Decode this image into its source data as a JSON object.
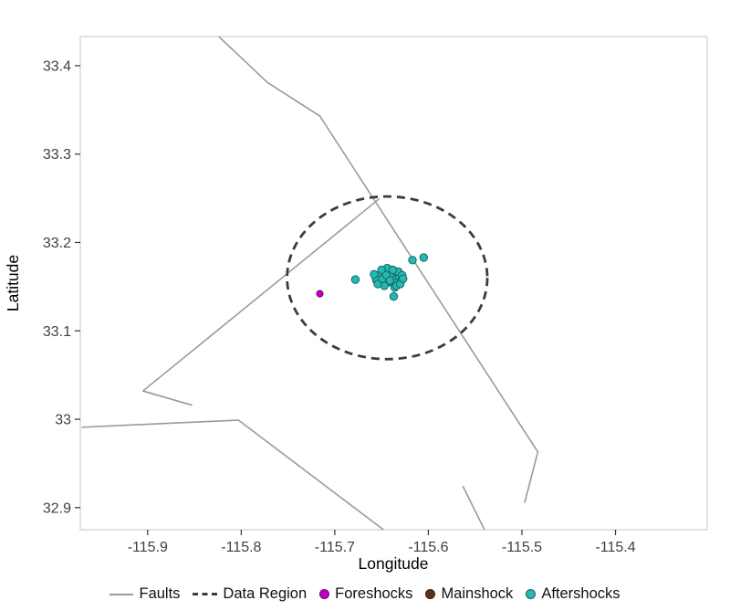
{
  "figure": {
    "xlabel": "Longitude",
    "ylabel": "Latitude"
  },
  "legend": {
    "items": [
      {
        "label": "Faults",
        "type": "line",
        "color": "#9a9a9a",
        "border": "#9a9a9a"
      },
      {
        "label": "Data Region",
        "type": "dashed-line",
        "color": "#3c3c3c",
        "border": "#3c3c3c"
      },
      {
        "label": "Foreshocks",
        "type": "point",
        "color": "#c000c0",
        "border": "#800080"
      },
      {
        "label": "Mainshock",
        "type": "point",
        "color": "#5c3317",
        "border": "#3b2009"
      },
      {
        "label": "Aftershocks",
        "type": "point",
        "color": "#29b7b2",
        "border": "#0d6a66"
      }
    ]
  },
  "chart_data": {
    "type": "scatter",
    "title": "",
    "xlabel": "Longitude",
    "ylabel": "Latitude",
    "xlim": [
      -115.972,
      -115.302
    ],
    "ylim": [
      32.875,
      33.433
    ],
    "grid": false,
    "legend_position": "bottom",
    "x_ticks": {
      "values": [
        -115.9,
        -115.8,
        -115.7,
        -115.6,
        -115.5,
        -115.4
      ],
      "labels": [
        "-115.9",
        "-115.8",
        "-115.7",
        "-115.6",
        "-115.5",
        "-115.4"
      ]
    },
    "y_ticks": {
      "values": [
        33.4,
        33.3,
        33.2,
        33.1,
        33.0,
        32.9
      ],
      "labels": [
        "33.4",
        "33.3",
        "33.2",
        "33.1",
        "33",
        "32.9"
      ]
    },
    "faults": {
      "color": "#9a9a9a",
      "width": 1.6,
      "polylines": [
        [
          [
            -115.827,
            33.436
          ],
          [
            -115.772,
            33.381
          ],
          [
            -115.716,
            33.343
          ]
        ],
        [
          [
            -115.716,
            33.343
          ],
          [
            -115.483,
            32.963
          ],
          [
            -115.497,
            32.906
          ]
        ],
        [
          [
            -115.653,
            33.249
          ],
          [
            -115.905,
            33.032
          ],
          [
            -115.853,
            33.016
          ]
        ],
        [
          [
            -115.97,
            32.991
          ],
          [
            -115.803,
            32.999
          ],
          [
            -115.648,
            32.875
          ]
        ],
        [
          [
            -115.563,
            32.924
          ],
          [
            -115.54,
            32.875
          ]
        ]
      ]
    },
    "data_region": {
      "shape": "ellipse",
      "center": [
        -115.644,
        33.16
      ],
      "rx": 0.107,
      "ry": 0.092,
      "color": "#3c3c3c",
      "dash": [
        9,
        6
      ],
      "width": 2.8
    },
    "series": [
      {
        "name": "Foreshocks",
        "marker": "circle",
        "radius": 3.6,
        "fill": "#c000c0",
        "stroke": "#800080",
        "points": [
          [
            -115.716,
            33.142
          ],
          [
            -115.656,
            33.157
          ]
        ]
      },
      {
        "name": "Mainshock",
        "marker": "circle",
        "radius": 4.4,
        "fill": "#5c3317",
        "stroke": "#3b2009",
        "points": [
          [
            -115.644,
            33.16
          ]
        ]
      },
      {
        "name": "Aftershocks",
        "marker": "circle",
        "radius": 4.2,
        "fill": "#29b7b2",
        "stroke": "#0d6a66",
        "points": [
          [
            -115.648,
            33.163
          ],
          [
            -115.645,
            33.159
          ],
          [
            -115.643,
            33.165
          ],
          [
            -115.64,
            33.161
          ],
          [
            -115.638,
            33.157
          ],
          [
            -115.636,
            33.163
          ],
          [
            -115.634,
            33.159
          ],
          [
            -115.651,
            33.157
          ],
          [
            -115.653,
            33.163
          ],
          [
            -115.646,
            33.167
          ],
          [
            -115.643,
            33.155
          ],
          [
            -115.641,
            33.169
          ],
          [
            -115.639,
            33.165
          ],
          [
            -115.637,
            33.153
          ],
          [
            -115.635,
            33.167
          ],
          [
            -115.633,
            33.155
          ],
          [
            -115.631,
            33.161
          ],
          [
            -115.629,
            33.157
          ],
          [
            -115.647,
            33.151
          ],
          [
            -115.644,
            33.171
          ],
          [
            -115.656,
            33.159
          ],
          [
            -115.658,
            33.164
          ],
          [
            -115.65,
            33.169
          ],
          [
            -115.636,
            33.149
          ],
          [
            -115.632,
            33.167
          ],
          [
            -115.628,
            33.163
          ],
          [
            -115.654,
            33.153
          ],
          [
            -115.649,
            33.159
          ],
          [
            -115.645,
            33.163
          ],
          [
            -115.641,
            33.157
          ],
          [
            -115.638,
            33.169
          ],
          [
            -115.634,
            33.151
          ],
          [
            -115.63,
            33.153
          ],
          [
            -115.627,
            33.159
          ],
          [
            -115.637,
            33.139
          ],
          [
            -115.678,
            33.158
          ],
          [
            -115.617,
            33.18
          ],
          [
            -115.605,
            33.183
          ]
        ]
      }
    ]
  }
}
